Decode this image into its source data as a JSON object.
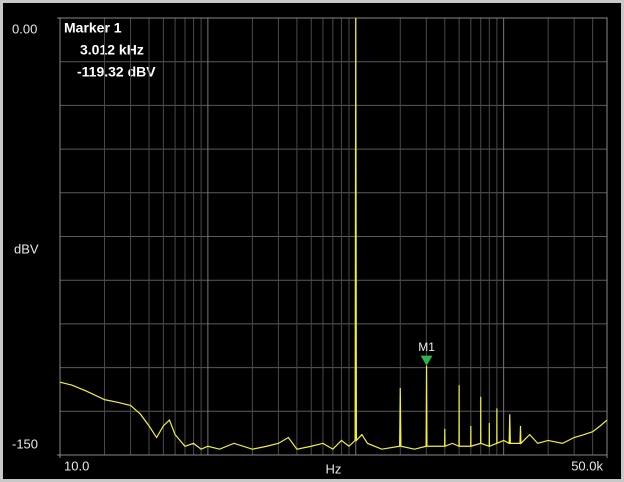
{
  "chart_data": {
    "type": "line",
    "y_label": "dBV",
    "x_label": "Hz",
    "log_x": true,
    "grid": true,
    "xlim": [
      10,
      50000
    ],
    "ylim": [
      -150,
      0
    ],
    "xticks": [
      {
        "value": 10,
        "label": "10.0"
      },
      {
        "value": 50000,
        "label": "50.0k"
      }
    ],
    "yticks": [
      {
        "value": 0,
        "label": "0.00"
      },
      -150
    ],
    "x": [
      10,
      12,
      15,
      20,
      25,
      30,
      35,
      40,
      45,
      50,
      55,
      60,
      70,
      80,
      90,
      100,
      120,
      150,
      200,
      250,
      300,
      350,
      400,
      500,
      600,
      700,
      800,
      900,
      990,
      1000,
      1010,
      1100,
      1200,
      1500,
      1980,
      2000,
      2020,
      2500,
      2990,
      3012,
      3030,
      3500,
      3990,
      4000,
      4010,
      4500,
      4990,
      5000,
      5010,
      5990,
      6000,
      6010,
      6990,
      7000,
      7010,
      7990,
      8000,
      8010,
      8990,
      9000,
      9010,
      10000,
      10900,
      11000,
      11100,
      12900,
      13000,
      13100,
      15000,
      17000,
      20000,
      25000,
      30000,
      35000,
      40000,
      45000,
      50000
    ],
    "series": [
      {
        "color": "#f2f03a",
        "values": [
          -125,
          -126,
          -128,
          -131,
          -132,
          -133,
          -136,
          -140,
          -144,
          -140,
          -138,
          -143,
          -147,
          -146,
          -148,
          -147,
          -148,
          -146,
          -148,
          -147,
          -146,
          -144,
          -148,
          -147,
          -146,
          -148,
          -145,
          -147,
          -145,
          0,
          -145,
          -143,
          -146,
          -148,
          -147,
          -127,
          -147,
          -148,
          -147,
          -119.32,
          -147,
          -147,
          -147,
          -141,
          -147,
          -146,
          -147,
          -126,
          -147,
          -147,
          -140,
          -147,
          -146,
          -130,
          -146,
          -147,
          -139,
          -147,
          -146,
          -134,
          -146,
          -145,
          -146,
          -136,
          -146,
          -146,
          -140,
          -146,
          -143,
          -146,
          -145,
          -146,
          -144,
          -143,
          -142,
          -140,
          -138
        ]
      }
    ],
    "marker": {
      "title": "Marker 1",
      "label": "M1",
      "x": 3012,
      "y": -119.32,
      "x_label": "3.012 kHz",
      "y_label": "-119.32 dBV",
      "color": "#2fb34a"
    }
  }
}
